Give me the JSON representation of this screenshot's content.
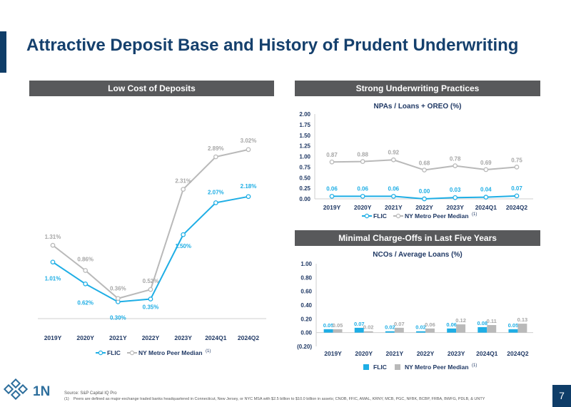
{
  "page": {
    "title": "Attractive Deposit Base and History of Prudent Underwriting",
    "page_number": "7",
    "brand_text": "1N",
    "colors": {
      "navy": "#0f3d68",
      "flic": "#1eaee5",
      "peer": "#b9b9b9",
      "header_bg": "#58595b"
    }
  },
  "sections": {
    "left_header": "Low Cost of Deposits",
    "right_top_header": "Strong Underwriting Practices",
    "right_bottom_header": "Minimal Charge-Offs in Last Five Years"
  },
  "footer": {
    "source": "Source: S&P Capital IQ Pro",
    "note_number": "(1)",
    "note": "Peers are defined as major-exchange traded banks headquartered in Connecticut, New Jersey, or NYC MSA with $2.5 billion to $10.0 billion in assets; CNOB, FFIC, AMAL, KRNY, MCB, PGC, NFBK, BCBP, FRBA, BWFG, PDLB, & UNTY"
  },
  "chart_data": [
    {
      "id": "deposits",
      "type": "line",
      "title": "",
      "categories": [
        "2019Y",
        "2020Y",
        "2021Y",
        "2022Y",
        "2023Y",
        "2024Q1",
        "2024Q2"
      ],
      "series": [
        {
          "name": "FLIC",
          "values": [
            1.01,
            0.62,
            0.3,
            0.35,
            1.5,
            2.07,
            2.18
          ],
          "labels": [
            "1.01%",
            "0.62%",
            "0.30%",
            "0.35%",
            "1.50%",
            "2.07%",
            "2.18%"
          ],
          "color": "#1eaee5"
        },
        {
          "name": "NY Metro Peer Median",
          "values": [
            1.31,
            0.86,
            0.36,
            0.52,
            2.31,
            2.89,
            3.02
          ],
          "labels": [
            "1.31%",
            "0.86%",
            "0.36%",
            "0.52%",
            "2.31%",
            "2.89%",
            "3.02%"
          ],
          "color": "#b9b9b9"
        }
      ],
      "legend": [
        "FLIC",
        "NY Metro Peer Median"
      ],
      "legend_superscript": "(1)",
      "ylim": [
        0,
        3.4
      ],
      "xlabel": "",
      "ylabel": ""
    },
    {
      "id": "npas",
      "type": "line",
      "title": "NPAs / Loans + OREO (%)",
      "categories": [
        "2019Y",
        "2020Y",
        "2021Y",
        "2022Y",
        "2023Y",
        "2024Q1",
        "2024Q2"
      ],
      "series": [
        {
          "name": "FLIC",
          "values": [
            0.06,
            0.06,
            0.06,
            0.0,
            0.03,
            0.04,
            0.07
          ],
          "labels": [
            "0.06",
            "0.06",
            "0.06",
            "0.00",
            "0.03",
            "0.04",
            "0.07"
          ],
          "color": "#1eaee5"
        },
        {
          "name": "NY Metro Peer Median",
          "values": [
            0.87,
            0.88,
            0.92,
            0.68,
            0.78,
            0.69,
            0.75
          ],
          "labels": [
            "0.87",
            "0.88",
            "0.92",
            "0.68",
            "0.78",
            "0.69",
            "0.75"
          ],
          "color": "#b9b9b9"
        }
      ],
      "legend": [
        "FLIC",
        "NY Metro Peer Median"
      ],
      "legend_superscript": "(1)",
      "ylim": [
        0,
        2.0
      ],
      "yticks": [
        "0.00",
        "0.25",
        "0.50",
        "0.75",
        "1.00",
        "1.25",
        "1.50",
        "1.75",
        "2.00"
      ],
      "xlabel": "",
      "ylabel": ""
    },
    {
      "id": "ncos",
      "type": "bar",
      "title": "NCOs / Average Loans (%)",
      "categories": [
        "2019Y",
        "2020Y",
        "2021Y",
        "2022Y",
        "2023Y",
        "2024Q1",
        "2024Q2"
      ],
      "series": [
        {
          "name": "FLIC",
          "values": [
            0.05,
            0.07,
            0.02,
            0.02,
            0.06,
            0.08,
            0.05
          ],
          "labels": [
            "0.05",
            "0.07",
            "0.02",
            "0.02",
            "0.06",
            "0.08",
            "0.05"
          ],
          "color": "#1eaee5"
        },
        {
          "name": "NY Metro Peer Median",
          "values": [
            0.05,
            0.02,
            0.07,
            0.06,
            0.12,
            0.11,
            0.13
          ],
          "labels": [
            "0.05",
            "0.02",
            "0.07",
            "0.06",
            "0.12",
            "0.11",
            "0.13"
          ],
          "color": "#b9b9b9"
        }
      ],
      "legend": [
        "FLIC",
        "NY Metro Peer Median"
      ],
      "legend_superscript": "(1)",
      "ylim": [
        -0.2,
        1.0
      ],
      "yticks": [
        "(0.20)",
        "0.00",
        "0.20",
        "0.40",
        "0.60",
        "0.80",
        "1.00"
      ],
      "xlabel": "",
      "ylabel": ""
    }
  ]
}
